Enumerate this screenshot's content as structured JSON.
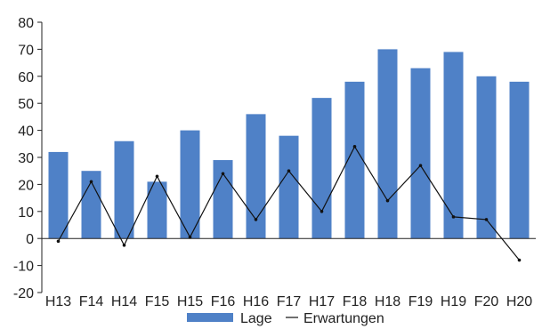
{
  "chart_data": {
    "type": "bar",
    "categories": [
      "H13",
      "F14",
      "H14",
      "F15",
      "H15",
      "F16",
      "H16",
      "F17",
      "H17",
      "F18",
      "H18",
      "F19",
      "H19",
      "F20",
      "H20"
    ],
    "series": [
      {
        "name": "Lage",
        "type": "bar",
        "color": "#4f81c7",
        "values": [
          32,
          25,
          36,
          21,
          40,
          29,
          46,
          38,
          52,
          58,
          70,
          63,
          69,
          60,
          58
        ]
      },
      {
        "name": "Erwartungen",
        "type": "line",
        "color": "#111111",
        "values": [
          -1,
          21,
          -2.5,
          23,
          0.5,
          24,
          7,
          25,
          10,
          34,
          14,
          27,
          8,
          7,
          -8
        ]
      }
    ],
    "ylim": [
      -20,
      80
    ],
    "yticks": [
      -20,
      -10,
      0,
      10,
      20,
      30,
      40,
      50,
      60,
      70,
      80
    ],
    "grid": false,
    "legend": "bottom"
  }
}
